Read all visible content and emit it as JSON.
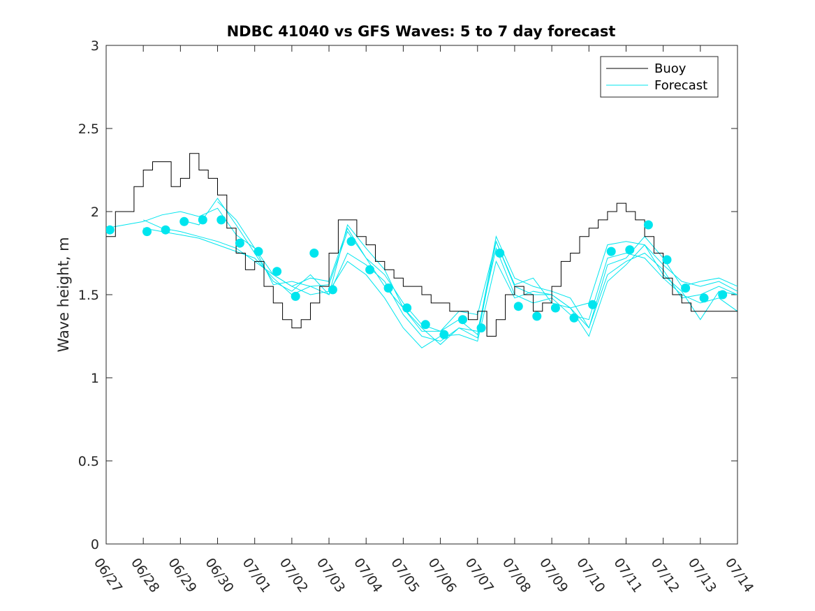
{
  "chart_data": {
    "type": "line",
    "title": "NDBC 41040 vs GFS Waves: 5 to 7 day forecast",
    "xlabel": "",
    "ylabel": "Wave height, m",
    "ylim": [
      0,
      3
    ],
    "xlim": [
      0,
      17
    ],
    "y_ticks": [
      0,
      0.5,
      1,
      1.5,
      2,
      2.5,
      3
    ],
    "y_tick_labels": [
      "0",
      "0.5",
      "1",
      "1.5",
      "2",
      "2.5",
      "3"
    ],
    "x_tick_labels": [
      "06/27",
      "06/28",
      "06/29",
      "06/30",
      "07/01",
      "07/02",
      "07/03",
      "07/04",
      "07/05",
      "07/06",
      "07/07",
      "07/08",
      "07/09",
      "07/10",
      "07/11",
      "07/12",
      "07/13",
      "07/14"
    ],
    "grid": false,
    "legend_position": "top-right",
    "legend": [
      {
        "label": "Buoy",
        "color": "#000000"
      },
      {
        "label": "Forecast",
        "color": "#00e5ee"
      }
    ],
    "buoy": {
      "name": "Buoy",
      "color": "#000000",
      "x": [
        0,
        0.25,
        0.5,
        0.75,
        1,
        1.25,
        1.5,
        1.75,
        2,
        2.25,
        2.5,
        2.75,
        3,
        3.25,
        3.5,
        3.75,
        4,
        4.25,
        4.5,
        4.75,
        5,
        5.25,
        5.5,
        5.75,
        6,
        6.25,
        6.5,
        6.75,
        7,
        7.25,
        7.5,
        7.75,
        8,
        8.25,
        8.5,
        8.75,
        9,
        9.25,
        9.5,
        9.75,
        10,
        10.25,
        10.5,
        10.75,
        11,
        11.25,
        11.5,
        11.75,
        12,
        12.25,
        12.5,
        12.75,
        13,
        13.25,
        13.5,
        13.75,
        14,
        14.25,
        14.5,
        14.75,
        15,
        15.25,
        15.5,
        15.75,
        16,
        16.25,
        16.5,
        16.75,
        17
      ],
      "y": [
        1.85,
        2.0,
        2.0,
        2.15,
        2.25,
        2.3,
        2.3,
        2.15,
        2.2,
        2.35,
        2.25,
        2.2,
        2.1,
        1.9,
        1.75,
        1.65,
        1.7,
        1.55,
        1.45,
        1.35,
        1.3,
        1.35,
        1.45,
        1.55,
        1.75,
        1.95,
        1.95,
        1.85,
        1.8,
        1.7,
        1.65,
        1.6,
        1.55,
        1.55,
        1.5,
        1.45,
        1.45,
        1.4,
        1.4,
        1.35,
        1.4,
        1.25,
        1.35,
        1.5,
        1.55,
        1.5,
        1.4,
        1.45,
        1.55,
        1.7,
        1.75,
        1.85,
        1.9,
        1.95,
        2.0,
        2.05,
        2.0,
        1.95,
        1.85,
        1.75,
        1.6,
        1.5,
        1.45,
        1.4,
        1.4,
        1.4,
        1.4,
        1.4,
        1.4
      ]
    },
    "forecast_markers": {
      "name": "Forecast",
      "color": "#00e5ee",
      "x": [
        0.1,
        1.1,
        1.6,
        2.1,
        2.6,
        3.1,
        3.6,
        4.1,
        4.6,
        5.1,
        5.6,
        6.1,
        6.6,
        7.1,
        7.6,
        8.1,
        8.6,
        9.1,
        9.6,
        10.1,
        10.6,
        11.1,
        11.6,
        12.1,
        12.6,
        13.1,
        13.6,
        14.1,
        14.6,
        15.1,
        15.6,
        16.1,
        16.6
      ],
      "y": [
        1.89,
        1.88,
        1.89,
        1.94,
        1.95,
        1.95,
        1.81,
        1.76,
        1.64,
        1.49,
        1.75,
        1.53,
        1.82,
        1.65,
        1.54,
        1.42,
        1.32,
        1.26,
        1.35,
        1.3,
        1.75,
        1.43,
        1.37,
        1.42,
        1.36,
        1.44,
        1.76,
        1.77,
        1.92,
        1.71,
        1.54,
        1.48,
        1.5
      ]
    },
    "forecast_series": [
      {
        "x": [
          0,
          0.5,
          1,
          1.5,
          2,
          2.5,
          3,
          3.5,
          4,
          4.5,
          5,
          5.5,
          6,
          6.5,
          7,
          7.5,
          8,
          8.5,
          9,
          9.5,
          10,
          10.5,
          11,
          11.5,
          12,
          12.5,
          13,
          13.5,
          14,
          14.5,
          15,
          15.5,
          16,
          16.5,
          17
        ],
        "y": [
          1.9,
          1.92,
          1.94,
          1.98,
          2.0,
          1.97,
          2.02,
          1.86,
          1.78,
          1.62,
          1.55,
          1.6,
          1.58,
          1.9,
          1.72,
          1.62,
          1.45,
          1.32,
          1.28,
          1.4,
          1.38,
          1.82,
          1.55,
          1.5,
          1.5,
          1.42,
          1.45,
          1.8,
          1.82,
          1.8,
          1.68,
          1.58,
          1.55,
          1.58,
          1.52
        ]
      },
      {
        "x": [
          1,
          1.5,
          2,
          2.5,
          3,
          3.5,
          4,
          4.5,
          5,
          5.5,
          6,
          6.5,
          7,
          7.5,
          8,
          8.5,
          9,
          9.5,
          10,
          10.5,
          11,
          11.5,
          12,
          12.5,
          13,
          13.5,
          14,
          14.5,
          15,
          15.5,
          16,
          16.5,
          17
        ],
        "y": [
          1.9,
          1.88,
          1.86,
          1.84,
          1.8,
          1.76,
          1.72,
          1.6,
          1.5,
          1.55,
          1.5,
          1.75,
          1.68,
          1.58,
          1.38,
          1.25,
          1.22,
          1.3,
          1.28,
          1.78,
          1.5,
          1.45,
          1.48,
          1.38,
          1.35,
          1.72,
          1.75,
          1.72,
          1.6,
          1.5,
          1.45,
          1.48,
          1.4
        ]
      },
      {
        "x": [
          1,
          1.5,
          2,
          2.5,
          3,
          3.5,
          4,
          4.5,
          5,
          5.5,
          6,
          6.5,
          7,
          7.5,
          8,
          8.5,
          9,
          9.5,
          10,
          10.5,
          11,
          11.5,
          12,
          12.5,
          13,
          13.5,
          14,
          14.5,
          15,
          15.5,
          16,
          16.5,
          17
        ],
        "y": [
          1.95,
          1.9,
          1.88,
          1.85,
          1.82,
          1.78,
          1.7,
          1.62,
          1.55,
          1.5,
          1.52,
          1.7,
          1.62,
          1.48,
          1.3,
          1.18,
          1.25,
          1.26,
          1.22,
          1.7,
          1.48,
          1.52,
          1.5,
          1.42,
          1.3,
          1.62,
          1.7,
          1.75,
          1.65,
          1.48,
          1.5,
          1.55,
          1.5
        ]
      },
      {
        "x": [
          2,
          2.5,
          3,
          3.5,
          4,
          4.5,
          5,
          5.5,
          6,
          6.5,
          7,
          7.5,
          8,
          8.5,
          9,
          9.5,
          10,
          10.5,
          11,
          11.5,
          12,
          12.5,
          13,
          13.5,
          14,
          14.5,
          15,
          15.5,
          16,
          16.5,
          17
        ],
        "y": [
          1.95,
          1.92,
          2.08,
          1.92,
          1.75,
          1.58,
          1.52,
          1.62,
          1.5,
          1.92,
          1.78,
          1.65,
          1.42,
          1.28,
          1.28,
          1.35,
          1.26,
          1.85,
          1.6,
          1.55,
          1.52,
          1.48,
          1.3,
          1.68,
          1.72,
          1.85,
          1.72,
          1.55,
          1.58,
          1.6,
          1.55
        ]
      },
      {
        "x": [
          3,
          3.5,
          4,
          4.5,
          5,
          5.5,
          6,
          6.5,
          7,
          7.5,
          8,
          8.5,
          9,
          9.5,
          10,
          10.5,
          11,
          11.5,
          12,
          12.5,
          13,
          13.5,
          14,
          14.5,
          15,
          15.5,
          16,
          16.5,
          17
        ],
        "y": [
          2.06,
          1.95,
          1.78,
          1.56,
          1.58,
          1.55,
          1.56,
          1.88,
          1.72,
          1.55,
          1.42,
          1.3,
          1.2,
          1.3,
          1.24,
          1.82,
          1.56,
          1.6,
          1.45,
          1.42,
          1.25,
          1.58,
          1.68,
          1.8,
          1.62,
          1.52,
          1.35,
          1.52,
          1.5
        ]
      }
    ]
  }
}
